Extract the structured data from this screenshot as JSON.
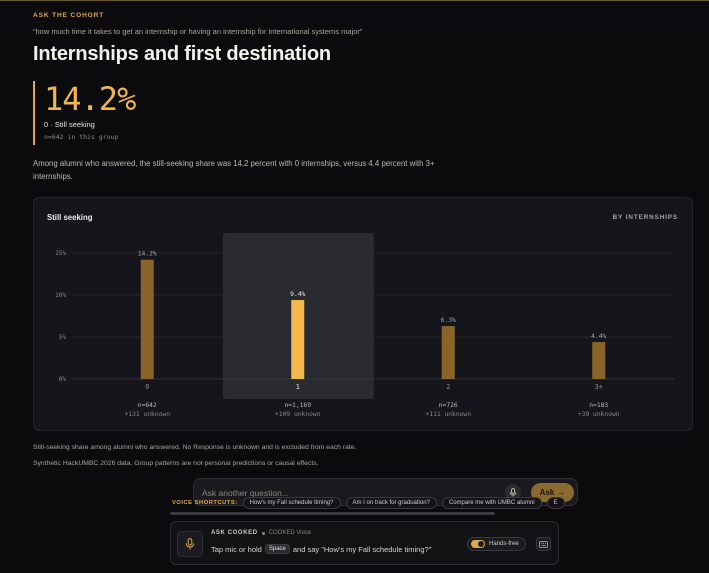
{
  "header": {
    "eyebrow": "ASK THE COHORT",
    "quote": "“how much time it takes to get an internship or having an internship for international systems major”",
    "title": "Internships and first destination"
  },
  "stat": {
    "value": "14.2%",
    "label": "0 · Still seeking",
    "sub": "n=642 in this group"
  },
  "summary": "Among alumni who answered, the still-seeking share was 14.2 percent with 0 internships, versus 4.4 percent with 3+ internships.",
  "card": {
    "title": "Still seeking",
    "tag": "BY INTERNSHIPS"
  },
  "chart_data": {
    "type": "bar",
    "title": "Still seeking",
    "categories": [
      "0",
      "1",
      "2",
      "3+"
    ],
    "values": [
      14.2,
      9.4,
      6.3,
      4.4
    ],
    "value_labels": [
      "14.2%",
      "9.4%",
      "6.3%",
      "4.4%"
    ],
    "n_labels": [
      "n=642",
      "n=1,169",
      "n=726",
      "n=183"
    ],
    "unknown_labels": [
      "+131 unknown",
      "+109 unknown",
      "+111 unknown",
      "+39 unknown"
    ],
    "y_ticks": [
      0,
      5,
      10,
      15
    ],
    "y_tick_labels": [
      "0%",
      "5%",
      "10%",
      "15%"
    ],
    "ylim": [
      0,
      15
    ],
    "highlighted_index": 1,
    "grid": true,
    "colors": {
      "bar": "#8a6426",
      "highlight": "#f2b84b",
      "grid": "#2a2b31"
    }
  },
  "footnotes": {
    "line1": "Still-seeking share among alumni who answered. No Response is unknown and is excluded from each rate.",
    "line2": "Synthetic HackUMBC 2026 data. Group patterns are not personal predictions or causal effects."
  },
  "ask": {
    "placeholder": "Ask another question...",
    "button_label": "Ask",
    "button_arrow": "→"
  },
  "shortcuts": {
    "label": "VOICE SHORTCUTS:",
    "items": [
      "How's my Fall schedule timing?",
      "Am I on track for graduation?",
      "Compare me with UMBC alumni",
      "E"
    ]
  },
  "voice": {
    "name": "ASK COOKED",
    "sub": "COOKED Voice",
    "prompt_before": "Tap mic or hold",
    "key": "Space",
    "prompt_after": "and say \"How's my Fall schedule timing?\"",
    "hands_free": "Hands-free"
  },
  "icons": {
    "mic": "microphone-icon",
    "keyboard": "keyboard-icon"
  }
}
